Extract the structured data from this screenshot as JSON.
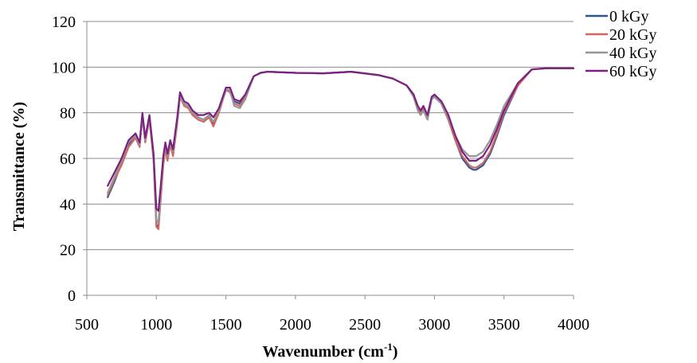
{
  "chart_data": {
    "type": "line",
    "xlabel": "Wavenumber (cm",
    "xlabel_sup": "-1",
    "xlabel_end": ")",
    "ylabel": "Transmittance (%)",
    "xlim": [
      500,
      4000
    ],
    "ylim": [
      0,
      120
    ],
    "xticks": [
      500,
      1000,
      1500,
      2000,
      2500,
      3000,
      3500,
      4000
    ],
    "yticks": [
      0,
      20,
      40,
      60,
      80,
      100,
      120
    ],
    "grid": "horizontal",
    "legend_position": "top-right",
    "series": [
      {
        "name": "0 kGy",
        "color": "#2e5597",
        "x": [
          650,
          700,
          750,
          800,
          850,
          880,
          900,
          920,
          950,
          980,
          1000,
          1015,
          1030,
          1050,
          1065,
          1080,
          1100,
          1120,
          1150,
          1170,
          1200,
          1230,
          1260,
          1300,
          1340,
          1380,
          1410,
          1450,
          1500,
          1530,
          1560,
          1600,
          1640,
          1700,
          1750,
          1800,
          2000,
          2200,
          2400,
          2600,
          2700,
          2800,
          2850,
          2880,
          2900,
          2920,
          2950,
          2980,
          3000,
          3050,
          3100,
          3150,
          3200,
          3250,
          3280,
          3300,
          3350,
          3400,
          3450,
          3500,
          3600,
          3700,
          3800,
          4000
        ],
        "y": [
          43,
          50,
          58,
          66,
          70,
          66,
          79,
          68,
          78,
          60,
          31,
          30,
          42,
          58,
          65,
          60,
          67,
          62,
          76,
          88,
          84,
          83,
          80,
          78,
          77,
          79,
          75,
          81,
          90,
          90,
          85,
          84,
          88,
          96,
          97.5,
          98,
          97.5,
          97.3,
          98,
          96.5,
          95,
          92,
          88,
          82,
          80,
          82,
          78,
          86,
          87,
          84,
          77,
          68,
          60,
          56,
          55,
          55,
          57,
          62,
          70,
          79,
          92,
          99,
          99.5,
          99.5
        ]
      },
      {
        "name": "20 kGy",
        "color": "#d2675f",
        "x": [
          650,
          700,
          750,
          800,
          850,
          880,
          900,
          920,
          950,
          980,
          1000,
          1015,
          1030,
          1050,
          1065,
          1080,
          1100,
          1120,
          1150,
          1170,
          1200,
          1230,
          1260,
          1300,
          1340,
          1380,
          1410,
          1450,
          1500,
          1530,
          1560,
          1600,
          1640,
          1700,
          1750,
          1800,
          2000,
          2200,
          2400,
          2600,
          2700,
          2800,
          2850,
          2880,
          2900,
          2920,
          2950,
          2980,
          3000,
          3050,
          3100,
          3150,
          3200,
          3250,
          3280,
          3300,
          3350,
          3400,
          3450,
          3500,
          3600,
          3700,
          3800,
          4000
        ],
        "y": [
          44,
          51,
          57,
          65,
          69,
          65,
          78,
          67,
          77,
          59,
          30,
          29,
          41,
          57,
          64,
          59,
          66,
          61,
          75,
          87,
          83,
          82,
          79,
          77,
          76,
          78,
          74,
          80,
          90,
          89,
          84,
          83,
          87,
          96,
          97.5,
          98,
          97.5,
          97.3,
          98,
          96.5,
          95,
          92,
          88,
          82,
          80,
          82,
          78,
          86,
          87,
          84,
          77,
          68,
          61,
          57,
          56,
          56,
          58,
          63,
          71,
          80,
          92,
          99,
          99.5,
          99.5
        ]
      },
      {
        "name": "40 kGy",
        "color": "#969696",
        "x": [
          650,
          700,
          750,
          800,
          850,
          880,
          900,
          920,
          950,
          980,
          1000,
          1015,
          1030,
          1050,
          1065,
          1080,
          1100,
          1120,
          1150,
          1170,
          1200,
          1230,
          1260,
          1300,
          1340,
          1380,
          1410,
          1450,
          1500,
          1530,
          1560,
          1600,
          1640,
          1700,
          1750,
          1800,
          2000,
          2200,
          2400,
          2600,
          2700,
          2800,
          2850,
          2880,
          2900,
          2920,
          2950,
          2980,
          3000,
          3050,
          3100,
          3150,
          3200,
          3250,
          3280,
          3300,
          3350,
          3400,
          3450,
          3500,
          3600,
          3700,
          3800,
          4000
        ],
        "y": [
          45,
          52,
          59,
          67,
          70,
          66,
          78,
          68,
          78,
          61,
          33,
          32,
          44,
          59,
          66,
          61,
          67,
          63,
          76,
          87,
          84,
          83,
          80,
          78,
          77,
          79,
          76,
          81,
          90,
          90,
          83,
          82,
          86,
          96,
          97.5,
          98,
          97.5,
          97.3,
          98,
          96.5,
          95,
          92,
          87,
          81,
          79,
          81,
          77,
          86,
          87,
          84,
          78,
          70,
          64,
          61,
          61,
          61,
          63,
          68,
          75,
          83,
          93,
          99,
          99.5,
          99.5
        ]
      },
      {
        "name": "60 kGy",
        "color": "#7b2080",
        "x": [
          650,
          700,
          750,
          800,
          850,
          880,
          900,
          920,
          950,
          980,
          1000,
          1015,
          1030,
          1050,
          1065,
          1080,
          1100,
          1120,
          1150,
          1170,
          1200,
          1230,
          1260,
          1300,
          1340,
          1380,
          1410,
          1450,
          1500,
          1530,
          1560,
          1600,
          1640,
          1700,
          1750,
          1800,
          2000,
          2200,
          2400,
          2600,
          2700,
          2800,
          2850,
          2880,
          2900,
          2920,
          2950,
          2980,
          3000,
          3050,
          3100,
          3150,
          3200,
          3250,
          3280,
          3300,
          3350,
          3400,
          3450,
          3500,
          3600,
          3700,
          3800,
          4000
        ],
        "y": [
          48,
          54,
          60,
          68,
          71,
          67,
          80,
          69,
          79,
          62,
          38,
          37,
          47,
          61,
          67,
          62,
          68,
          64,
          78,
          89,
          85,
          84,
          81,
          79,
          79,
          80,
          78,
          82,
          91,
          91,
          86,
          85,
          88,
          96,
          97.5,
          98,
          97.5,
          97.3,
          98,
          96.5,
          95,
          92,
          88,
          83,
          81,
          83,
          79,
          87,
          88,
          85,
          79,
          70,
          63,
          59,
          59,
          59,
          61,
          66,
          73,
          81,
          93,
          99,
          99.5,
          99.5
        ]
      }
    ]
  }
}
